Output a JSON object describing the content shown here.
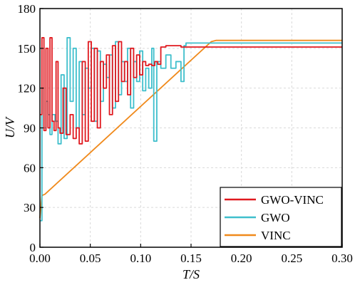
{
  "chart_data": {
    "type": "line",
    "title": "",
    "xlabel": "T/S",
    "ylabel": "U/V",
    "xlim": [
      0,
      0.3
    ],
    "ylim": [
      0,
      180
    ],
    "x_ticks": [
      "0.00",
      "0.05",
      "0.10",
      "0.15",
      "0.20",
      "0.25",
      "0.30"
    ],
    "y_ticks": [
      "0",
      "30",
      "60",
      "90",
      "120",
      "150",
      "180"
    ],
    "grid": true,
    "legend_position": "bottom-right",
    "series": [
      {
        "name": "GWO-VINC",
        "color": "#e0191f",
        "x": [
          0.0,
          0.002,
          0.004,
          0.006,
          0.008,
          0.01,
          0.012,
          0.014,
          0.016,
          0.018,
          0.02,
          0.023,
          0.026,
          0.03,
          0.033,
          0.036,
          0.039,
          0.042,
          0.045,
          0.048,
          0.051,
          0.054,
          0.057,
          0.06,
          0.063,
          0.066,
          0.069,
          0.072,
          0.075,
          0.078,
          0.081,
          0.084,
          0.087,
          0.09,
          0.093,
          0.096,
          0.099,
          0.102,
          0.105,
          0.108,
          0.111,
          0.114,
          0.117,
          0.12,
          0.125,
          0.14,
          0.16,
          0.18,
          0.2,
          0.23,
          0.26,
          0.3
        ],
        "y": [
          100,
          158,
          88,
          150,
          90,
          158,
          95,
          88,
          140,
          90,
          86,
          120,
          85,
          100,
          82,
          90,
          78,
          140,
          80,
          155,
          95,
          150,
          90,
          140,
          120,
          145,
          100,
          152,
          110,
          155,
          125,
          140,
          115,
          150,
          128,
          145,
          130,
          140,
          137,
          138,
          137,
          140,
          138,
          151,
          152,
          151,
          151,
          151,
          151,
          151,
          151,
          151
        ]
      },
      {
        "name": "GWO",
        "color": "#3fbfcc",
        "x": [
          0.0,
          0.002,
          0.004,
          0.006,
          0.008,
          0.01,
          0.012,
          0.015,
          0.018,
          0.021,
          0.024,
          0.027,
          0.03,
          0.033,
          0.036,
          0.039,
          0.042,
          0.045,
          0.048,
          0.051,
          0.054,
          0.057,
          0.06,
          0.063,
          0.066,
          0.069,
          0.072,
          0.075,
          0.078,
          0.081,
          0.084,
          0.087,
          0.09,
          0.093,
          0.096,
          0.099,
          0.102,
          0.105,
          0.108,
          0.111,
          0.113,
          0.116,
          0.12,
          0.125,
          0.13,
          0.135,
          0.14,
          0.143,
          0.145,
          0.16,
          0.2,
          0.25,
          0.3
        ],
        "y": [
          20,
          120,
          90,
          110,
          100,
          85,
          100,
          95,
          78,
          130,
          82,
          158,
          110,
          150,
          90,
          140,
          100,
          135,
          120,
          150,
          95,
          148,
          110,
          138,
          128,
          145,
          105,
          155,
          115,
          140,
          125,
          150,
          105,
          140,
          125,
          148,
          118,
          135,
          120,
          150,
          80,
          140,
          135,
          145,
          135,
          140,
          125,
          152,
          154,
          154,
          154,
          154,
          154
        ]
      },
      {
        "name": "VINC",
        "color": "#f08a1c",
        "x": [
          0.0,
          0.002,
          0.005,
          0.17,
          0.175,
          0.2,
          0.25,
          0.3
        ],
        "y": [
          22,
          39,
          40,
          155,
          156,
          156,
          156,
          156
        ]
      }
    ]
  }
}
